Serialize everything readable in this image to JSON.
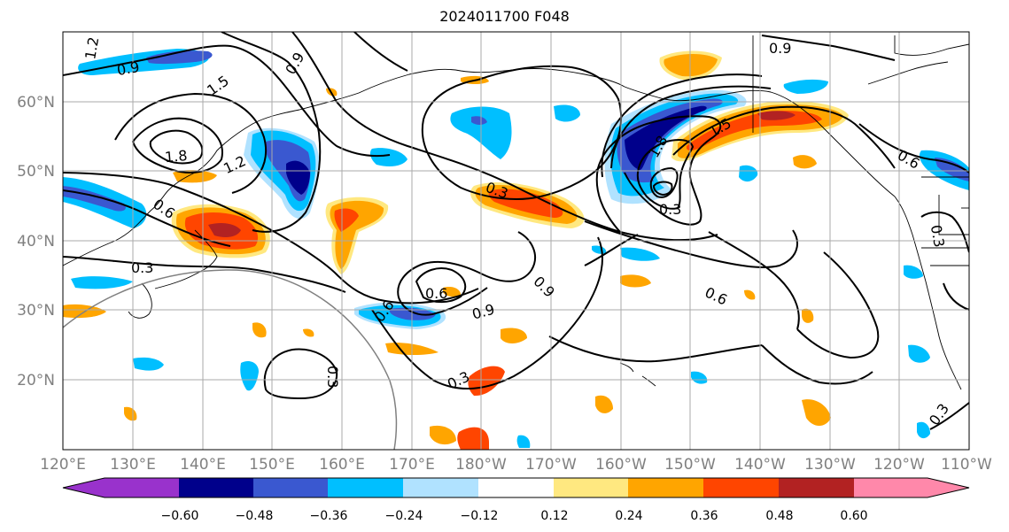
{
  "title": "2024011700 F048",
  "map": {
    "lat_labels": [
      "60°N",
      "50°N",
      "40°N",
      "30°N",
      "20°N"
    ],
    "lon_labels": [
      "120°E",
      "130°E",
      "140°E",
      "150°E",
      "160°E",
      "170°E",
      "180°W",
      "170°W",
      "160°W",
      "150°W",
      "140°W",
      "130°W",
      "120°W",
      "110°W"
    ],
    "contour_labels": [
      "1.2",
      "0.9",
      "1.5",
      "0.9",
      "1.8",
      "1.2",
      "0.6",
      "0.3",
      "0.3",
      "0.6",
      "0.6",
      "0.9",
      "0.9",
      "0.3",
      "0.3",
      "0.6",
      "0.9",
      "1.5",
      "1.8",
      "0.6",
      "0.3",
      "0.3",
      "0.3"
    ]
  },
  "colorbar": {
    "ticks": [
      "−0.60",
      "−0.48",
      "−0.36",
      "−0.24",
      "−0.12",
      "0.12",
      "0.24",
      "0.36",
      "0.48",
      "0.60"
    ],
    "colors": [
      "#9932cc",
      "#00008b",
      "#3a58d0",
      "#00bfff",
      "#b0e2ff",
      "#ffffff",
      "#ffe880",
      "#ffa500",
      "#ff4500",
      "#b22222",
      "#ff88aa"
    ]
  },
  "colors": {
    "neg_strong": "#00008b",
    "neg_mid": "#3a58d0",
    "neg_light": "#00bfff",
    "neg_faint": "#b0e2ff",
    "pos_faint": "#ffe880",
    "pos_light": "#ffa500",
    "pos_mid": "#ff4500",
    "pos_strong": "#b22222"
  }
}
